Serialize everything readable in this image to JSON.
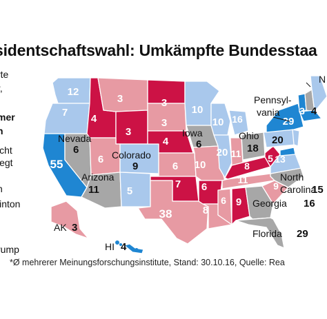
{
  "title": "sidentschaftswahl: Umkämpfte Bundesstaa",
  "legend_lines": [
    "rte",
    "r,",
    "",
    "mer",
    "n",
    "",
    "icht",
    "legt",
    "",
    "n",
    "linton",
    "",
    "",
    "rump"
  ],
  "footnote": "*Ø mehrerer Meinungsforschungsinstitute, Stand: 30.10.16, Quelle: Rea",
  "colors": {
    "dem_strong": "#1f86d2",
    "dem_lean": "#a9c8ec",
    "rep_strong": "#cc1245",
    "rep_lean": "#e79aa3",
    "tossup": "#a7a7a7",
    "border": "#ffffff"
  },
  "states": [
    {
      "abbr": "WA",
      "votes": "12",
      "category": "dem_lean"
    },
    {
      "abbr": "OR",
      "votes": "7",
      "category": "dem_lean"
    },
    {
      "abbr": "CA",
      "votes": "55",
      "category": "dem_strong"
    },
    {
      "abbr": "NV",
      "name": "Nevada",
      "votes": "6",
      "category": "tossup"
    },
    {
      "abbr": "ID",
      "votes": "4",
      "category": "rep_strong"
    },
    {
      "abbr": "MT",
      "votes": "3",
      "category": "rep_lean"
    },
    {
      "abbr": "WY",
      "votes": "3",
      "category": "rep_strong"
    },
    {
      "abbr": "UT",
      "votes": "6",
      "category": "rep_lean"
    },
    {
      "abbr": "AZ",
      "name": "Arizona",
      "votes": "11",
      "category": "tossup"
    },
    {
      "abbr": "CO",
      "name": "Colorado",
      "votes": "9",
      "category": "dem_lean"
    },
    {
      "abbr": "NM",
      "votes": "5",
      "category": "dem_lean"
    },
    {
      "abbr": "ND",
      "votes": "3",
      "category": "rep_strong"
    },
    {
      "abbr": "SD",
      "votes": "3",
      "category": "rep_lean"
    },
    {
      "abbr": "NE",
      "votes": "4",
      "category": "rep_strong"
    },
    {
      "abbr": "KS",
      "votes": "6",
      "category": "rep_lean"
    },
    {
      "abbr": "OK",
      "votes": "7",
      "category": "rep_strong"
    },
    {
      "abbr": "TX",
      "votes": "38",
      "category": "rep_lean"
    },
    {
      "abbr": "MN",
      "votes": "10",
      "category": "dem_lean"
    },
    {
      "abbr": "IA",
      "name": "Iowa",
      "votes": "6",
      "category": "tossup"
    },
    {
      "abbr": "MO",
      "votes": "10",
      "category": "rep_lean"
    },
    {
      "abbr": "AR",
      "votes": "6",
      "category": "rep_strong"
    },
    {
      "abbr": "LA",
      "votes": "8",
      "category": "rep_lean"
    },
    {
      "abbr": "WI",
      "votes": "10",
      "category": "dem_lean"
    },
    {
      "abbr": "IL",
      "votes": "20",
      "category": "dem_lean"
    },
    {
      "abbr": "MI",
      "votes": "16",
      "category": "dem_lean"
    },
    {
      "abbr": "IN",
      "votes": "11",
      "category": "rep_lean"
    },
    {
      "abbr": "OH",
      "name": "Ohio",
      "votes": "18",
      "category": "tossup"
    },
    {
      "abbr": "KY",
      "votes": "8",
      "category": "rep_strong"
    },
    {
      "abbr": "TN",
      "votes": "11",
      "category": "rep_lean"
    },
    {
      "abbr": "MS",
      "votes": "6",
      "category": "rep_lean"
    },
    {
      "abbr": "AL",
      "votes": "9",
      "category": "rep_strong"
    },
    {
      "abbr": "GA",
      "name": "Georgia",
      "votes": "16",
      "category": "tossup"
    },
    {
      "abbr": "FL",
      "name": "Florida",
      "votes": "29",
      "category": "tossup"
    },
    {
      "abbr": "SC",
      "votes": "9",
      "category": "rep_lean"
    },
    {
      "abbr": "NC",
      "name": "North Carolina",
      "votes": "15",
      "category": "tossup"
    },
    {
      "abbr": "WV",
      "votes": "5",
      "category": "rep_strong"
    },
    {
      "abbr": "VA",
      "votes": "13",
      "category": "dem_lean"
    },
    {
      "abbr": "PA",
      "name": "Pennsylvania",
      "votes": "20",
      "category": "dem_lean"
    },
    {
      "abbr": "NY",
      "votes": "29",
      "category": "dem_strong"
    },
    {
      "abbr": "VT",
      "votes": "3",
      "category": "dem_strong"
    },
    {
      "abbr": "NH",
      "votes": "4",
      "category": "tossup"
    },
    {
      "abbr": "ME",
      "votes": "",
      "category": "dem_lean"
    },
    {
      "abbr": "MA",
      "votes": "",
      "category": "dem_strong"
    },
    {
      "abbr": "NJ",
      "votes": "",
      "category": "dem_lean"
    },
    {
      "abbr": "MD",
      "votes": "",
      "category": "dem_strong"
    },
    {
      "abbr": "AK",
      "votes": "3",
      "category": "rep_lean"
    },
    {
      "abbr": "HI",
      "votes": "4",
      "category": "dem_strong"
    }
  ],
  "labels": {
    "pennsylvania": "Pennsyl-",
    "pennsylvania2": "vania",
    "nevada": "Nevada",
    "colorado": "Colorado",
    "arizona": "Arizona",
    "iowa": "Iowa",
    "ohio": "Ohio",
    "north": "North",
    "carolina": "Carolina",
    "georgia": "Georgia",
    "florida": "Florida",
    "ak": "AK",
    "hi": "HI",
    "ne_partial": "N"
  }
}
